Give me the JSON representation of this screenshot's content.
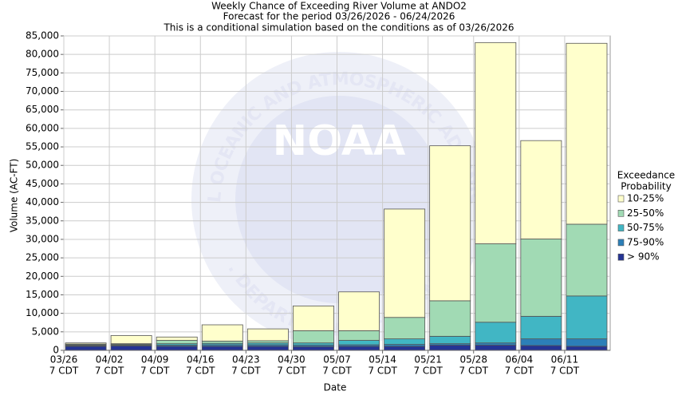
{
  "chart_data": {
    "type": "stacked_bar",
    "title": "Weekly Chance of Exceeding River Volume at ANDO2",
    "subtitle": "Forecast for the period 03/26/2026 - 06/24/2026",
    "note": "This is a conditional simulation based on the conditions as of 03/26/2026",
    "y_label": "Volume (AC-FT)",
    "x_label": "Date",
    "legend_title": [
      "Exceedance",
      "Probability"
    ],
    "legend_position": "right",
    "grid": true,
    "watermark": {
      "logo": "NOAA",
      "top_arc": "NATIONAL OCEANIC AND ATMOSPHERIC ADMINISTRATION",
      "bottom_arc": "U.S. DEPARTMENT OF COMMERCE"
    },
    "categories": [
      "03/26",
      "04/02",
      "04/09",
      "04/16",
      "04/23",
      "04/30",
      "05/07",
      "05/14",
      "05/21",
      "05/28",
      "06/04",
      "06/11"
    ],
    "category_sublabels": [
      "7 CDT",
      "7 CDT",
      "7 CDT",
      "7 CDT",
      "7 CDT",
      "7 CDT",
      "7 CDT",
      "7 CDT",
      "7 CDT",
      "7 CDT",
      "7 CDT",
      "7 CDT"
    ],
    "series": [
      {
        "name": "10-25%",
        "color": "#ffffcc",
        "values": [
          300,
          2200,
          900,
          4400,
          3200,
          6700,
          10500,
          29300,
          41900,
          54400,
          26600,
          48900
        ]
      },
      {
        "name": "25-50%",
        "color": "#a1dab4",
        "values": [
          200,
          200,
          900,
          600,
          600,
          3300,
          2600,
          5800,
          9600,
          21200,
          20900,
          19400
        ]
      },
      {
        "name": "50-75%",
        "color": "#41b6c4",
        "values": [
          200,
          200,
          400,
          400,
          500,
          600,
          1200,
          1500,
          2000,
          5600,
          6100,
          11600
        ]
      },
      {
        "name": "75-90%",
        "color": "#2c7fb8",
        "values": [
          200,
          200,
          300,
          400,
          400,
          400,
          400,
          500,
          400,
          600,
          1800,
          2000
        ]
      },
      {
        "name": "> 90%",
        "color": "#253494",
        "values": [
          1100,
          1200,
          1100,
          1100,
          1100,
          1000,
          1100,
          1100,
          1400,
          1400,
          1300,
          1100
        ]
      }
    ],
    "ylim": [
      0,
      85000
    ],
    "yticks": [
      0,
      {
        "value": 5000,
        "label": "5,000"
      },
      {
        "value": 10000,
        "label": "10,000"
      },
      {
        "value": 15000,
        "label": "15,000"
      },
      {
        "value": 20000,
        "label": "20,000"
      },
      {
        "value": 25000,
        "label": "25,000"
      },
      {
        "value": 30000,
        "label": "30,000"
      },
      {
        "value": 35000,
        "label": "35,000"
      },
      {
        "value": 40000,
        "label": "40,000"
      },
      {
        "value": 45000,
        "label": "45,000"
      },
      {
        "value": 50000,
        "label": "50,000"
      },
      {
        "value": 55000,
        "label": "55,000"
      },
      {
        "value": 60000,
        "label": "60,000"
      },
      {
        "value": 65000,
        "label": "65,000"
      },
      {
        "value": 70000,
        "label": "70,000"
      },
      {
        "value": 75000,
        "label": "75,000"
      },
      {
        "value": 80000,
        "label": "80,000"
      },
      {
        "value": 85000,
        "label": "85,000"
      }
    ]
  }
}
